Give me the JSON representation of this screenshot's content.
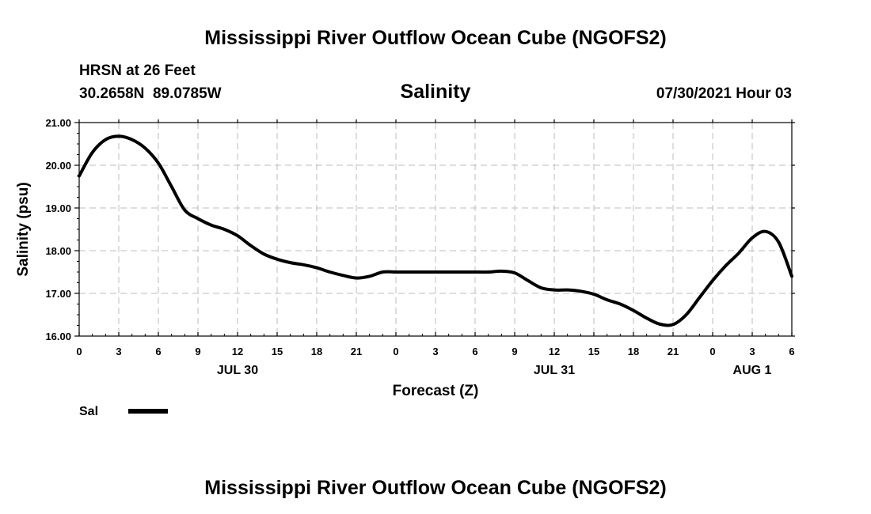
{
  "header": {
    "main_title": "Mississippi River Outflow Ocean Cube (NGOFS2)",
    "station_line": "HRSN at 26 Feet",
    "coords_line": "30.2658N  89.0785W",
    "timestamp": "07/30/2021 Hour 03"
  },
  "footer": {
    "title": "Mississippi River Outflow Ocean Cube (NGOFS2)"
  },
  "chart_data": {
    "type": "line",
    "title": "Salinity",
    "xlabel": "Forecast (Z)",
    "ylabel": "Salinity (psu)",
    "ylim": [
      16.0,
      21.0
    ],
    "xlim": [
      0,
      54
    ],
    "grid": true,
    "y_ticks": [
      "16.00",
      "17.00",
      "18.00",
      "19.00",
      "20.00",
      "21.00"
    ],
    "y_tick_values": [
      16,
      17,
      18,
      19,
      20,
      21
    ],
    "x_tick_hours": [
      0,
      3,
      6,
      9,
      12,
      15,
      18,
      21,
      24,
      27,
      30,
      33,
      36,
      39,
      42,
      45,
      48,
      51,
      54
    ],
    "x_tick_labels": [
      "0",
      "3",
      "6",
      "9",
      "12",
      "15",
      "18",
      "21",
      "0",
      "3",
      "6",
      "9",
      "12",
      "15",
      "18",
      "21",
      "0",
      "3",
      "6"
    ],
    "date_labels": [
      {
        "label": "JUL 30",
        "hour": 12
      },
      {
        "label": "JUL 31",
        "hour": 36
      },
      {
        "label": "AUG 1",
        "hour": 51
      }
    ],
    "legend": [
      {
        "name": "Sal",
        "color": "#000000"
      }
    ],
    "series": [
      {
        "name": "Sal",
        "x": [
          0,
          1,
          2,
          3,
          4,
          5,
          6,
          7,
          8,
          9,
          10,
          11,
          12,
          13,
          14,
          15,
          16,
          17,
          18,
          19,
          20,
          21,
          22,
          23,
          24,
          25,
          26,
          27,
          28,
          29,
          30,
          31,
          32,
          33,
          34,
          35,
          36,
          37,
          38,
          39,
          40,
          41,
          42,
          43,
          44,
          45,
          46,
          47,
          48,
          49,
          50,
          51,
          52,
          53,
          54
        ],
        "values": [
          19.75,
          20.3,
          20.6,
          20.68,
          20.6,
          20.4,
          20.05,
          19.5,
          18.95,
          18.75,
          18.6,
          18.5,
          18.35,
          18.12,
          17.92,
          17.8,
          17.72,
          17.67,
          17.6,
          17.5,
          17.42,
          17.36,
          17.4,
          17.5,
          17.5,
          17.5,
          17.5,
          17.5,
          17.5,
          17.5,
          17.5,
          17.5,
          17.52,
          17.48,
          17.3,
          17.13,
          17.08,
          17.08,
          17.05,
          16.98,
          16.85,
          16.75,
          16.6,
          16.42,
          16.28,
          16.27,
          16.5,
          16.9,
          17.3,
          17.65,
          17.95,
          18.3,
          18.45,
          18.2,
          17.4
        ]
      }
    ]
  }
}
